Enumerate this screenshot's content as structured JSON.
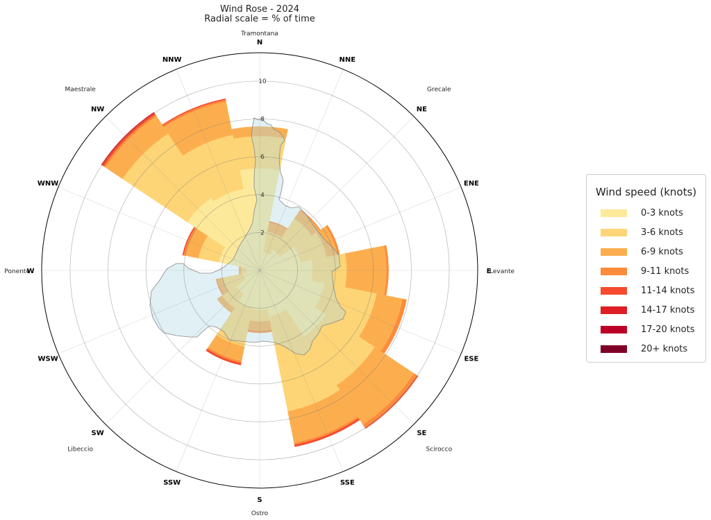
{
  "chart_data": {
    "type": "wind-rose (polar stacked bar)",
    "title": "Wind Rose - 2024",
    "subtitle": "Radial scale = % of time",
    "radial_ticks": [
      2,
      4,
      6,
      8,
      10
    ],
    "radial_max": 11.5,
    "directions": [
      "N",
      "NNE",
      "NE",
      "ENE",
      "E",
      "ESE",
      "SE",
      "SSE",
      "S",
      "SSW",
      "SW",
      "WSW",
      "W",
      "WNW",
      "NW",
      "NNW"
    ],
    "wind_names": [
      {
        "label": "Tramontana",
        "direction": "N"
      },
      {
        "label": "Grecale",
        "direction": "NE"
      },
      {
        "label": "Levante",
        "direction": "E"
      },
      {
        "label": "Scirocco",
        "direction": "SE"
      },
      {
        "label": "Ostro",
        "direction": "S"
      },
      {
        "label": "Libeccio",
        "direction": "SW"
      },
      {
        "label": "Ponente",
        "direction": "W"
      },
      {
        "label": "Maestrale",
        "direction": "NW"
      }
    ],
    "legend_title": "Wind speed (knots)",
    "legend_placement": "right",
    "speed_bins": [
      "0-3 knots",
      "3-6 knots",
      "6-9 knots",
      "9-11 knots",
      "11-14 knots",
      "14-17 knots",
      "17-20 knots",
      "20+ knots"
    ],
    "colors": [
      "#fde99a",
      "#fdd576",
      "#fcae4f",
      "#fd8b3c",
      "#f64b2e",
      "#de1d25",
      "#bc0026",
      "#7f0025"
    ],
    "cumulative_unit": "% of time",
    "cumulative_values": [
      [
        5.4,
        7.1,
        7.6,
        7.6,
        7.6,
        7.6,
        7.6,
        7.6
      ],
      [
        1.0,
        2.1,
        2.6,
        2.65,
        2.65,
        2.65,
        2.65,
        2.65
      ],
      [
        1.3,
        3.3,
        3.8,
        3.85,
        3.85,
        3.85,
        3.85,
        3.85
      ],
      [
        2.2,
        3.6,
        4.2,
        4.3,
        4.3,
        4.3,
        4.3,
        4.3
      ],
      [
        2.8,
        4.6,
        6.7,
        6.8,
        6.8,
        6.8,
        6.8,
        6.8
      ],
      [
        3.5,
        6.3,
        7.7,
        7.9,
        7.9,
        7.9,
        7.9,
        7.9
      ],
      [
        4.2,
        7.3,
        9.8,
        10.0,
        10.05,
        10.05,
        10.05,
        10.05
      ],
      [
        2.5,
        7.6,
        9.3,
        9.4,
        9.5,
        9.5,
        9.5,
        9.5
      ],
      [
        2.1,
        2.7,
        3.2,
        3.3,
        3.3,
        3.3,
        3.3,
        3.3
      ],
      [
        2.0,
        4.1,
        4.9,
        5.0,
        5.1,
        5.1,
        5.1,
        5.1
      ],
      [
        1.5,
        2.4,
        2.7,
        2.7,
        2.7,
        2.7,
        2.7,
        2.7
      ],
      [
        0.9,
        2.0,
        2.3,
        2.35,
        2.35,
        2.35,
        2.35,
        2.35
      ],
      [
        0.7,
        1.0,
        1.1,
        1.1,
        1.1,
        1.1,
        1.1,
        1.1
      ],
      [
        2.2,
        3.3,
        4.0,
        4.1,
        4.15,
        4.15,
        4.15,
        4.15
      ],
      [
        4.6,
        8.7,
        9.8,
        9.9,
        10.0,
        10.05,
        10.05,
        10.05
      ],
      [
        4.4,
        7.3,
        9.1,
        9.2,
        9.25,
        9.25,
        9.25,
        9.25
      ]
    ]
  }
}
